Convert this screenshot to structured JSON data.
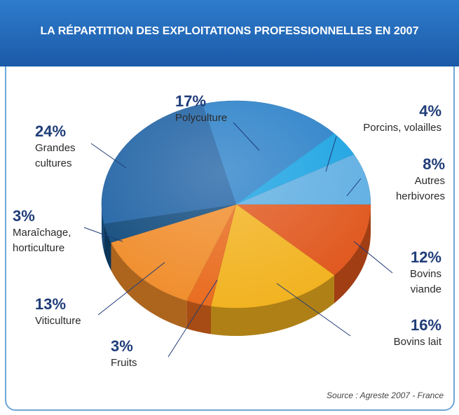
{
  "chart_data": {
    "type": "pie",
    "title": "LA RÉPARTITION DES EXPLOITATIONS PROFESSIONNELLES EN 2007",
    "categories": [
      "Bovins viande",
      "Bovins lait",
      "Fruits",
      "Viticulture",
      "Maraîchage, horticulture",
      "Grandes cultures",
      "Polyculture",
      "Porcins, volailles",
      "Autres herbivores"
    ],
    "values": [
      12,
      16,
      3,
      13,
      3,
      24,
      17,
      4,
      8
    ],
    "value_labels": [
      "12%",
      "16%",
      "3%",
      "13%",
      "3%",
      "24%",
      "17%",
      "4%",
      "8%"
    ],
    "colors": [
      "#e0561c",
      "#f2b21e",
      "#e86a1c",
      "#f08c2a",
      "#0f4a7c",
      "#1f62a4",
      "#2a80c8",
      "#18a2e2",
      "#5eaee2"
    ],
    "source": "Source : Agreste 2007 - France"
  }
}
